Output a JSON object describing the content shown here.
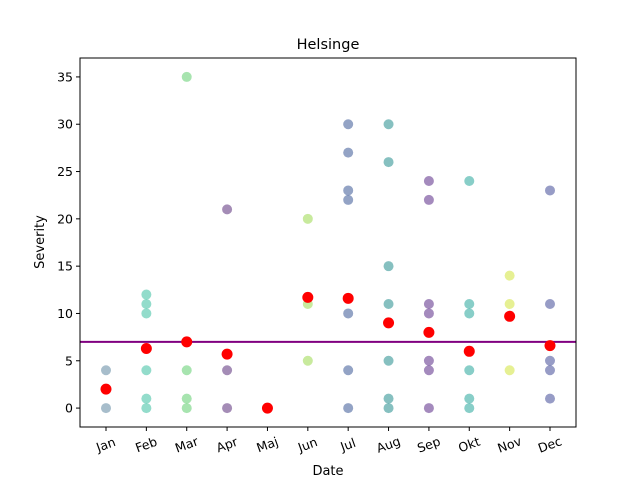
{
  "chart_data": {
    "type": "scatter",
    "title": "Helsinge",
    "xlabel": "Date",
    "ylabel": "Severity",
    "categories": [
      "Jan",
      "Feb",
      "Mar",
      "Apr",
      "Maj",
      "Jun",
      "Jul",
      "Aug",
      "Sep",
      "Okt",
      "Nov",
      "Dec"
    ],
    "ylim": [
      -2,
      37
    ],
    "yticks": [
      0,
      5,
      10,
      15,
      20,
      25,
      30,
      35
    ],
    "grid": false,
    "threshold_line": {
      "value": 7,
      "color": "#800080"
    },
    "observations": [
      {
        "month": "Jan",
        "values": [
          4,
          0
        ],
        "color": "#5f87a1"
      },
      {
        "month": "Feb",
        "values": [
          12,
          11,
          10,
          4,
          1,
          0
        ],
        "color": "#3bbfa0"
      },
      {
        "month": "Mar",
        "values": [
          35,
          4,
          1,
          0
        ],
        "color": "#5fce6e"
      },
      {
        "month": "Apr",
        "values": [
          21,
          4,
          0
        ],
        "color": "#5a2d7a"
      },
      {
        "month": "Maj",
        "values": [],
        "color": "#440154"
      },
      {
        "month": "Jun",
        "values": [
          20,
          11,
          5
        ],
        "color": "#9bd94c"
      },
      {
        "month": "Jul",
        "values": [
          30,
          27,
          23,
          22,
          10,
          4,
          0
        ],
        "color": "#3b5896"
      },
      {
        "month": "Aug",
        "values": [
          30,
          26,
          15,
          11,
          5,
          1,
          0
        ],
        "color": "#228c8d"
      },
      {
        "month": "Sep",
        "values": [
          24,
          22,
          11,
          10,
          5,
          4,
          0
        ],
        "color": "#5a2a86"
      },
      {
        "month": "Okt",
        "values": [
          24,
          11,
          10,
          4,
          1,
          0
        ],
        "color": "#26a69a"
      },
      {
        "month": "Nov",
        "values": [
          14,
          11,
          4
        ],
        "color": "#d2e43a"
      },
      {
        "month": "Dec",
        "values": [
          23,
          11,
          5,
          4,
          1
        ],
        "color": "#424b97"
      }
    ],
    "mean_series": {
      "color": "#ff0000",
      "values": [
        2,
        6.3,
        7,
        5.7,
        0,
        11.7,
        11.6,
        9,
        8,
        6,
        9.7,
        6.6
      ]
    }
  }
}
